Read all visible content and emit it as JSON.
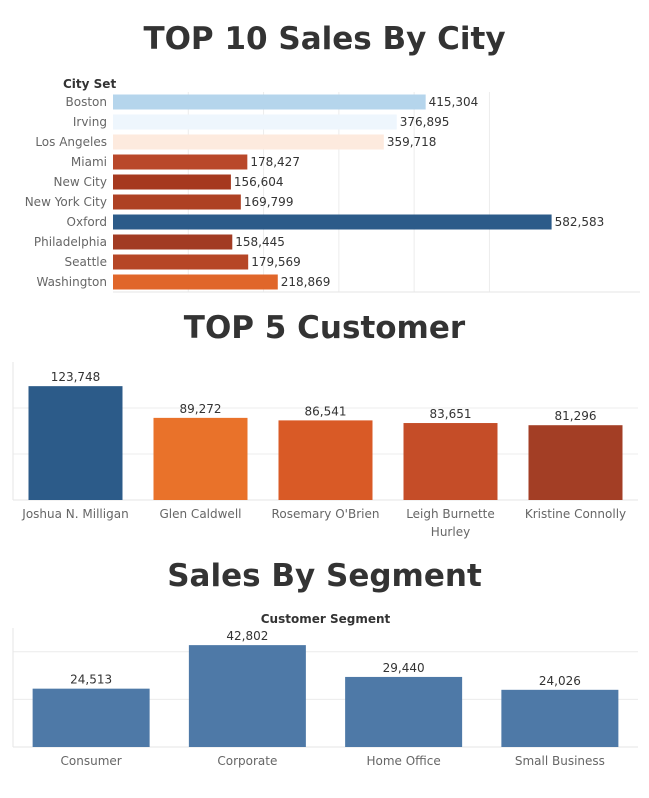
{
  "chart_data": [
    {
      "type": "bar",
      "orientation": "horizontal",
      "title": "TOP 10 Sales By City",
      "axis_header": "City Set",
      "categories": [
        "Boston",
        "Irving",
        "Los Angeles",
        "Miami",
        "New City",
        "New York City",
        "Oxford",
        "Philadelphia",
        "Seattle",
        "Washington"
      ],
      "values": [
        415304,
        376895,
        359718,
        178427,
        156604,
        169799,
        582583,
        158445,
        179569,
        218869
      ],
      "value_labels": [
        "415,304",
        "376,895",
        "359,718",
        "178,427",
        "156,604",
        "169,799",
        "582,583",
        "158,445",
        "179,569",
        "218,869"
      ],
      "colors": [
        "#b5d5ec",
        "#eef6fd",
        "#fdeade",
        "#b9482a",
        "#a6391f",
        "#ae4124",
        "#2c5b89",
        "#a23b23",
        "#b64626",
        "#e0662a"
      ],
      "xlim": [
        0,
        700000
      ],
      "grid": true
    },
    {
      "type": "bar",
      "title": "TOP 5 Customer",
      "categories": [
        "Joshua N. Milligan",
        "Glen Caldwell",
        "Rosemary O'Brien",
        "Leigh Burnette Hurley",
        "Kristine Connolly"
      ],
      "category_label_lines": [
        [
          "Joshua N. Milligan"
        ],
        [
          "Glen Caldwell"
        ],
        [
          "Rosemary O'Brien"
        ],
        [
          "Leigh Burnette",
          "Hurley"
        ],
        [
          "Kristine Connolly"
        ]
      ],
      "values": [
        123748,
        89272,
        86541,
        83651,
        81296
      ],
      "value_labels": [
        "123,748",
        "89,272",
        "86,541",
        "83,651",
        "81,296"
      ],
      "colors": [
        "#2c5b89",
        "#e9722a",
        "#d95a26",
        "#c54d28",
        "#a33e25"
      ],
      "ylim": [
        0,
        150000
      ],
      "grid": true
    },
    {
      "type": "bar",
      "title": "Sales By Segment",
      "axis_header": "Customer Segment",
      "categories": [
        "Consumer",
        "Corporate",
        "Home Office",
        "Small Business"
      ],
      "values": [
        24513,
        42802,
        29440,
        24026
      ],
      "value_labels": [
        "24,513",
        "42,802",
        "29,440",
        "24,026"
      ],
      "colors": [
        "#4e79a7",
        "#4e79a7",
        "#4e79a7",
        "#4e79a7"
      ],
      "ylim": [
        0,
        50000
      ],
      "grid": true
    }
  ]
}
